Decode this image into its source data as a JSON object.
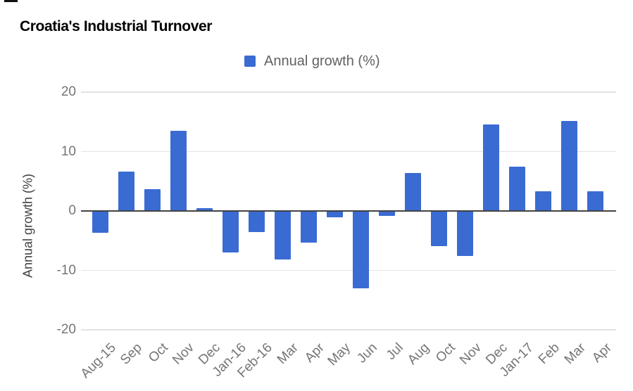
{
  "chart_data": {
    "type": "bar",
    "title": "Croatia's Industrial Turnover",
    "ylabel": "Annual growth (%)",
    "xlabel": "",
    "legend": {
      "label": "Annual growth (%)",
      "position": "top"
    },
    "grid": true,
    "ylim": [
      -20,
      20
    ],
    "yticks": [
      20,
      10,
      0,
      -10,
      -20
    ],
    "bar_color": "#3a6bd2",
    "baseline_color": "#424242",
    "gridline_color": "#e3e3e3",
    "categories": [
      "Aug-15",
      "Sep",
      "Oct",
      "Nov",
      "Dec",
      "Jan-16",
      "Feb-16",
      "Mar",
      "Apr",
      "May",
      "Jun",
      "Jul",
      "Aug",
      "Oct",
      "Nov",
      "Dec",
      "Jan-17",
      "Feb",
      "Mar",
      "Apr"
    ],
    "values": [
      -3.7,
      6.6,
      3.7,
      13.5,
      0.5,
      -7,
      -3.6,
      -8.2,
      -5.3,
      -1.1,
      -13,
      -0.8,
      6.4,
      -5.9,
      -7.6,
      14.5,
      7.5,
      3.3,
      15.1,
      3.3
    ]
  }
}
